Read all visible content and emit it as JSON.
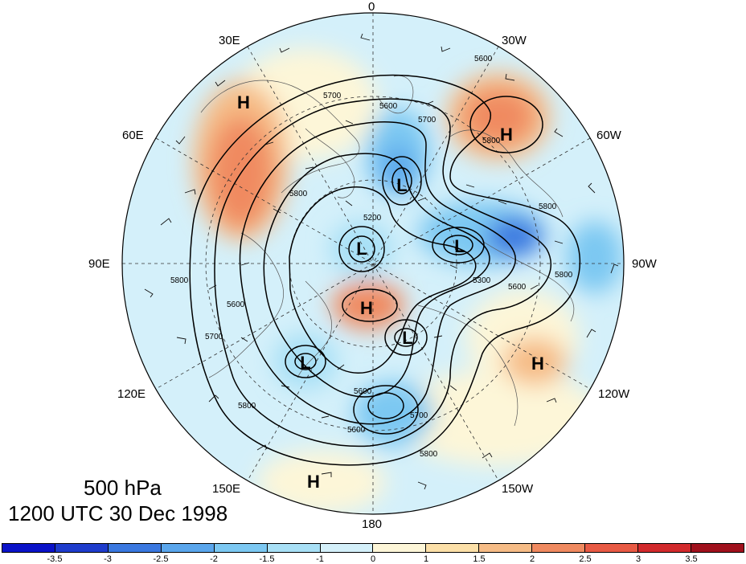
{
  "title": {
    "line1": "500 hPa",
    "line2": "1200 UTC 30 Dec 1998"
  },
  "lon_labels": {
    "n0": "0",
    "n30w": "30W",
    "n60w": "60W",
    "n90w": "90W",
    "n120w": "120W",
    "n150w": "150W",
    "n180": "180",
    "n150e": "150E",
    "n120e": "120E",
    "n90e": "90E",
    "n60e": "60E",
    "n30e": "30E"
  },
  "centers": {
    "h1": "H",
    "h2": "H",
    "h3": "H",
    "h4": "H",
    "h5": "H",
    "l1": "L",
    "l2": "L",
    "l3": "L",
    "l4": "L",
    "l5": "L"
  },
  "contour_labels": {
    "c1": "5600",
    "c2": "5700",
    "c3": "5800",
    "c4": "5200",
    "c5": "5600",
    "c6": "5800",
    "c7": "5700",
    "c8": "5800",
    "c9": "5600",
    "c10": "5700",
    "c11": "5800",
    "c12": "5600",
    "c13": "5300",
    "c14": "5600",
    "c15": "5800",
    "c16": "5800",
    "c17": "5700",
    "c18": "5800",
    "c19": "5600"
  },
  "colorbar": {
    "colors": [
      "#0a12c8",
      "#1e3ccc",
      "#3a78e0",
      "#5aa6ec",
      "#7cc8f2",
      "#a8e0f6",
      "#d4f0fa",
      "#fdf6d8",
      "#fce0a8",
      "#f6bc86",
      "#f08a60",
      "#e85a44",
      "#d22a2c",
      "#a0101c"
    ],
    "ticks": [
      "-3.5",
      "-3",
      "-2.5",
      "-2",
      "-1.5",
      "-1",
      "0",
      "1",
      "1.5",
      "2",
      "2.5",
      "3",
      "3.5"
    ]
  }
}
